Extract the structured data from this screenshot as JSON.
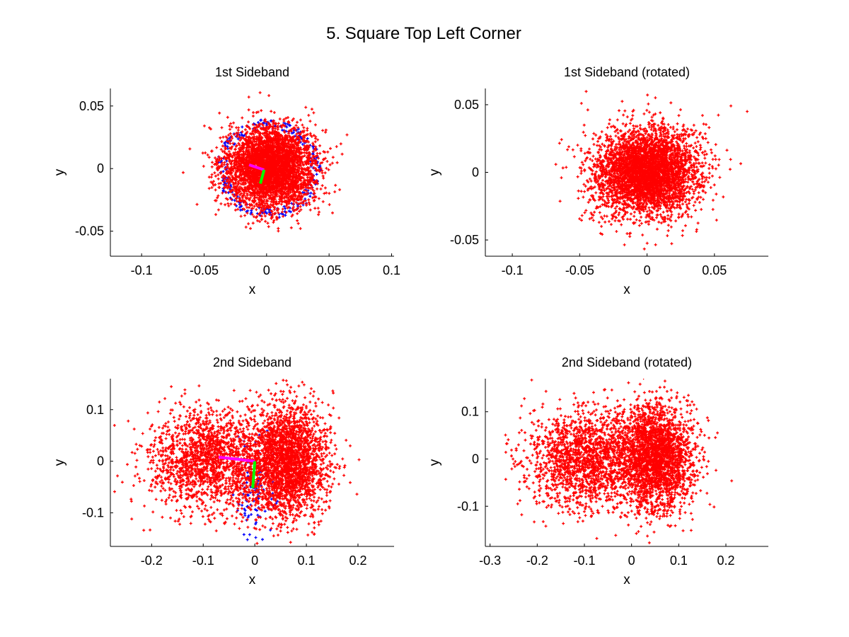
{
  "figure_title": "5. Square Top Left Corner",
  "colors": {
    "scatter": "#ff0000",
    "raw_scatter": "#0000ff",
    "axis1": "#ff00ff",
    "axis2": "#00ff00",
    "background": "#ffffff"
  },
  "chart_data": [
    {
      "type": "scatter",
      "title": "1st Sideband",
      "xlabel": "x",
      "ylabel": "y",
      "xlim": [
        -0.125,
        0.102
      ],
      "ylim": [
        -0.07,
        0.064
      ],
      "xticks": [
        -0.1,
        -0.05,
        0,
        0.05,
        0.1
      ],
      "xtick_labels": [
        "-0.1",
        "-0.05",
        "0",
        "0.05",
        "0.1"
      ],
      "yticks": [
        -0.05,
        0,
        0.05
      ],
      "ytick_labels": [
        "-0.05",
        "0",
        "0.05"
      ],
      "grid": false,
      "series": [
        {
          "color": "#0000ff",
          "distribution": "annular-ring",
          "center": [
            0.002,
            0.0
          ],
          "radius": 0.038,
          "points_approx": 250
        },
        {
          "color": "#ff0000",
          "distribution": "gaussian-cloud",
          "center": [
            0.003,
            0.001
          ],
          "std": [
            0.018,
            0.016
          ],
          "points_approx": 4000
        }
      ],
      "principal_axes": [
        {
          "color": "#ff00ff",
          "from": [
            -0.002,
            -0.001
          ],
          "to": [
            -0.014,
            0.003
          ]
        },
        {
          "color": "#00ff00",
          "from": [
            -0.002,
            -0.001
          ],
          "to": [
            -0.005,
            -0.012
          ]
        }
      ]
    },
    {
      "type": "scatter",
      "title": "1st Sideband (rotated)",
      "xlabel": "x",
      "ylabel": "y",
      "xlim": [
        -0.12,
        0.09
      ],
      "ylim": [
        -0.062,
        0.062
      ],
      "xticks": [
        -0.1,
        -0.05,
        0,
        0.05
      ],
      "xtick_labels": [
        "-0.1",
        "-0.05",
        "0",
        "0.05"
      ],
      "yticks": [
        -0.05,
        0,
        0.05
      ],
      "ytick_labels": [
        "-0.05",
        "0",
        "0.05"
      ],
      "grid": false,
      "series": [
        {
          "color": "#ff0000",
          "distribution": "gaussian-cloud",
          "center": [
            0.0,
            0.0
          ],
          "std": [
            0.019,
            0.016
          ],
          "points_approx": 4000
        }
      ]
    },
    {
      "type": "scatter",
      "title": "2nd Sideband",
      "xlabel": "x",
      "ylabel": "y",
      "xlim": [
        -0.28,
        0.27
      ],
      "ylim": [
        -0.165,
        0.16
      ],
      "xticks": [
        -0.2,
        -0.1,
        0,
        0.1,
        0.2
      ],
      "xtick_labels": [
        "-0.2",
        "-0.1",
        "0",
        "0.1",
        "0.2"
      ],
      "yticks": [
        -0.1,
        0,
        0.1
      ],
      "ytick_labels": [
        "-0.1",
        "0",
        "0.1"
      ],
      "grid": false,
      "series": [
        {
          "color": "#0000ff",
          "distribution": "gaussian-cloud",
          "center": [
            0.0,
            -0.06
          ],
          "std": [
            0.02,
            0.04
          ],
          "points_approx": 120
        },
        {
          "color": "#ff0000",
          "distribution": "two-lobe-cloud",
          "lobes": [
            {
              "center": [
                0.06,
                0.0
              ],
              "std": [
                0.04,
                0.055
              ],
              "weight": 0.6
            },
            {
              "center": [
                -0.09,
                0.0
              ],
              "std": [
                0.06,
                0.05
              ],
              "weight": 0.4
            }
          ],
          "points_approx": 4200
        }
      ],
      "principal_axes": [
        {
          "color": "#ff00ff",
          "from": [
            0.0,
            0.0
          ],
          "to": [
            -0.07,
            0.008
          ]
        },
        {
          "color": "#00ff00",
          "from": [
            0.0,
            0.0
          ],
          "to": [
            -0.004,
            -0.052
          ]
        }
      ]
    },
    {
      "type": "scatter",
      "title": "2nd Sideband (rotated)",
      "xlabel": "x",
      "ylabel": "y",
      "xlim": [
        -0.31,
        0.29
      ],
      "ylim": [
        -0.185,
        0.17
      ],
      "xticks": [
        -0.3,
        -0.2,
        -0.1,
        0,
        0.1,
        0.2
      ],
      "xtick_labels": [
        "-0.3",
        "-0.2",
        "-0.1",
        "0",
        "0.1",
        "0.2"
      ],
      "yticks": [
        -0.1,
        0,
        0.1
      ],
      "ytick_labels": [
        "-0.1",
        "0",
        "0.1"
      ],
      "grid": false,
      "series": [
        {
          "color": "#ff0000",
          "distribution": "two-lobe-cloud",
          "lobes": [
            {
              "center": [
                0.05,
                0.0
              ],
              "std": [
                0.04,
                0.055
              ],
              "weight": 0.6
            },
            {
              "center": [
                -0.1,
                0.0
              ],
              "std": [
                0.06,
                0.05
              ],
              "weight": 0.4
            }
          ],
          "points_approx": 4200
        }
      ]
    }
  ]
}
